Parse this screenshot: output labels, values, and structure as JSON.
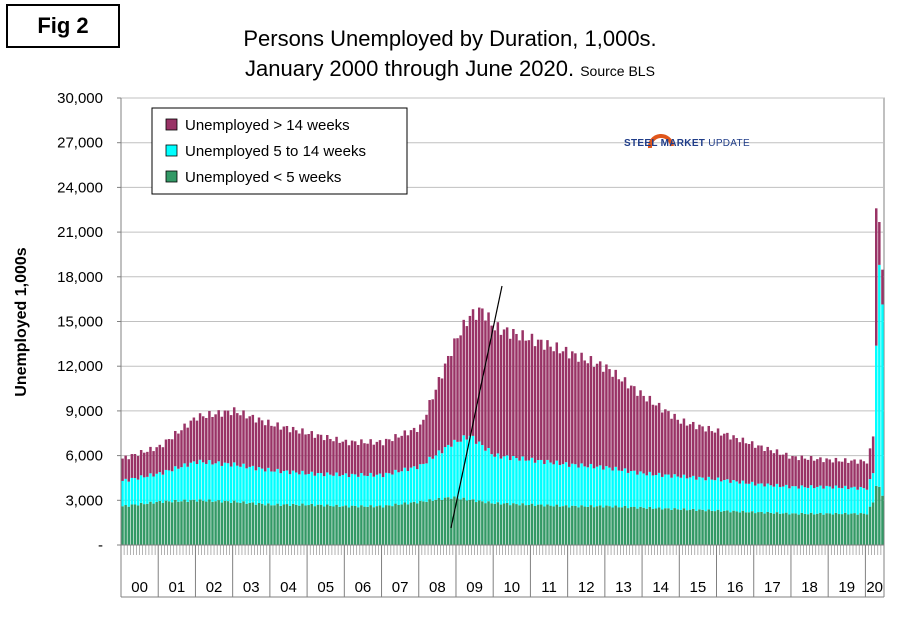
{
  "figure_label": "Fig 2",
  "logo": {
    "brand": "STEEL MARKET",
    "suffix": "UPDATE",
    "accent": "#e0561b",
    "color": "#1f3c88"
  },
  "chart_data": {
    "type": "bar",
    "stacked": true,
    "title_line1": "Persons Unemployed by Duration, 1,000s.",
    "title_line2": "January 2000 through June 2020.",
    "source": "Source BLS",
    "ylabel": "Unemployed 1,000s",
    "xlabel": "",
    "ylim": [
      0,
      30000
    ],
    "yticks": [
      0,
      3000,
      6000,
      9000,
      12000,
      15000,
      18000,
      21000,
      24000,
      27000,
      30000
    ],
    "ytick_labels": [
      "-",
      "3,000",
      "6,000",
      "9,000",
      "12,000",
      "15,000",
      "18,000",
      "21,000",
      "24,000",
      "27,000",
      "30,000"
    ],
    "x_year_labels": [
      "00",
      "01",
      "02",
      "03",
      "04",
      "05",
      "06",
      "07",
      "08",
      "09",
      "10",
      "11",
      "12",
      "13",
      "14",
      "15",
      "16",
      "17",
      "18",
      "19",
      "20"
    ],
    "months": 246,
    "legend_position": "top-left",
    "series": [
      {
        "name": "Unemployed > 14 weeks",
        "color": "#993366",
        "key": "long"
      },
      {
        "name": "Unemployed 5 to 14 weeks",
        "color": "#00ffff",
        "key": "mid"
      },
      {
        "name": "Unemployed < 5 weeks",
        "color": "#339966",
        "key": "short"
      }
    ],
    "anchors": {
      "note": "monthly values interpolated between these yearly-start anchors (index = months since Jan 2000)",
      "short": [
        [
          0,
          2600
        ],
        [
          12,
          2900
        ],
        [
          24,
          3000
        ],
        [
          36,
          2900
        ],
        [
          48,
          2700
        ],
        [
          60,
          2700
        ],
        [
          72,
          2600
        ],
        [
          84,
          2600
        ],
        [
          96,
          2900
        ],
        [
          106,
          3200
        ],
        [
          120,
          2800
        ],
        [
          132,
          2700
        ],
        [
          144,
          2600
        ],
        [
          156,
          2600
        ],
        [
          168,
          2500
        ],
        [
          180,
          2400
        ],
        [
          192,
          2300
        ],
        [
          204,
          2200
        ],
        [
          216,
          2100
        ],
        [
          228,
          2100
        ],
        [
          240,
          2100
        ],
        [
          241,
          2500
        ],
        [
          242,
          2900
        ],
        [
          243,
          4000
        ],
        [
          244,
          3800
        ],
        [
          245,
          3400
        ],
        [
          246,
          2800
        ]
      ],
      "mid": [
        [
          0,
          1700
        ],
        [
          12,
          1900
        ],
        [
          24,
          2600
        ],
        [
          36,
          2500
        ],
        [
          48,
          2300
        ],
        [
          60,
          2100
        ],
        [
          72,
          2100
        ],
        [
          84,
          2100
        ],
        [
          96,
          2400
        ],
        [
          112,
          4300
        ],
        [
          120,
          3200
        ],
        [
          132,
          3000
        ],
        [
          144,
          2800
        ],
        [
          156,
          2600
        ],
        [
          168,
          2300
        ],
        [
          180,
          2200
        ],
        [
          192,
          2100
        ],
        [
          204,
          1900
        ],
        [
          216,
          1800
        ],
        [
          228,
          1800
        ],
        [
          240,
          1700
        ],
        [
          241,
          1800
        ],
        [
          242,
          2000
        ],
        [
          243,
          9500
        ],
        [
          244,
          14500
        ],
        [
          245,
          13200
        ],
        [
          246,
          9000
        ]
      ],
      "long": [
        [
          0,
          1500
        ],
        [
          12,
          1800
        ],
        [
          24,
          3000
        ],
        [
          36,
          3600
        ],
        [
          48,
          3100
        ],
        [
          60,
          2700
        ],
        [
          72,
          2200
        ],
        [
          84,
          2200
        ],
        [
          96,
          2600
        ],
        [
          108,
          7000
        ],
        [
          116,
          9100
        ],
        [
          120,
          8600
        ],
        [
          132,
          8100
        ],
        [
          144,
          7500
        ],
        [
          156,
          6700
        ],
        [
          168,
          5200
        ],
        [
          180,
          3700
        ],
        [
          192,
          3200
        ],
        [
          204,
          2600
        ],
        [
          216,
          2000
        ],
        [
          228,
          1800
        ],
        [
          240,
          1800
        ],
        [
          241,
          2000
        ],
        [
          242,
          2500
        ],
        [
          243,
          9300
        ],
        [
          244,
          2800
        ],
        [
          245,
          2400
        ],
        [
          246,
          2600
        ]
      ]
    }
  }
}
